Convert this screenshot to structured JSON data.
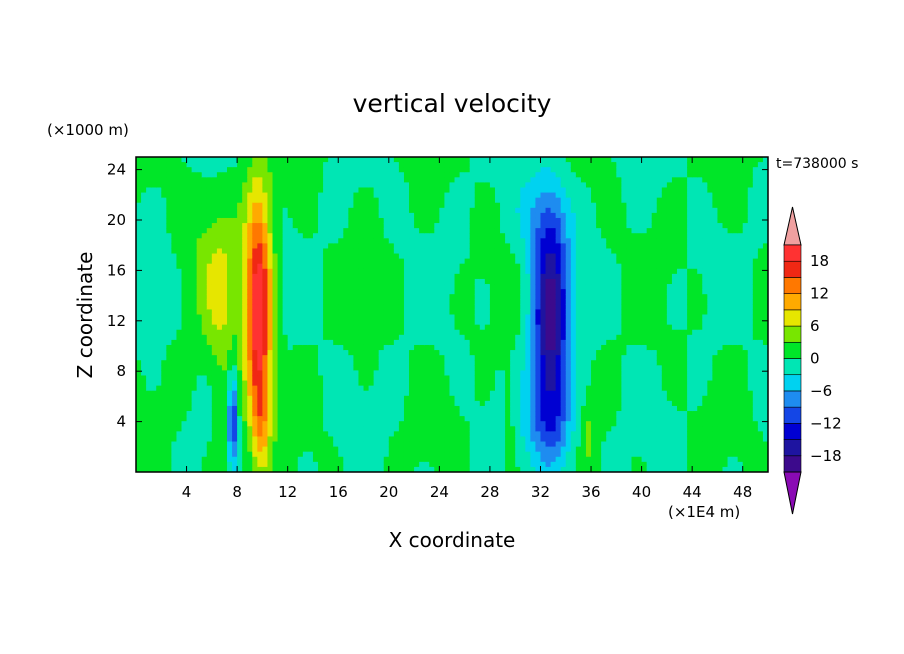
{
  "chart_data": {
    "type": "heatmap",
    "title": "vertical velocity",
    "xlabel": "X coordinate",
    "ylabel": "Z coordinate",
    "x_unit": "(×1E4 m)",
    "y_unit": "(×1000 m)",
    "time_label": "t=738000 s",
    "xlim": [
      0,
      50
    ],
    "ylim": [
      0,
      25
    ],
    "x_ticks": [
      4,
      8,
      12,
      16,
      20,
      24,
      28,
      32,
      36,
      40,
      44,
      48
    ],
    "y_ticks": [
      4,
      8,
      12,
      16,
      20,
      24
    ],
    "x_tick_labels": [
      "4",
      "8",
      "12",
      "16",
      "20",
      "24",
      "28",
      "32",
      "36",
      "40",
      "44",
      "48"
    ],
    "y_tick_labels": [
      "4",
      "8",
      "12",
      "16",
      "20",
      "24"
    ],
    "colorbar": {
      "min": -21,
      "max": 21,
      "step": 3,
      "levels": [
        -21,
        -18,
        -15,
        -12,
        -9,
        -6,
        -3,
        0,
        3,
        6,
        9,
        12,
        15,
        18,
        21
      ],
      "labels": [
        -18,
        -12,
        -6,
        0,
        6,
        12,
        18
      ],
      "label_text": [
        "−18",
        "−12",
        "−6",
        "0",
        "6",
        "12",
        "18"
      ],
      "extend": "both",
      "colors": [
        "#8a0ab4",
        "#3c0a8c",
        "#1e14a0",
        "#0000d2",
        "#1446e6",
        "#1e8cf0",
        "#00d2f0",
        "#00e6b4",
        "#00e628",
        "#78e600",
        "#e6e600",
        "#ffaa00",
        "#ff7800",
        "#f02814",
        "#ff3232",
        "#f0a0a0"
      ]
    },
    "features": [
      {
        "type": "updraft",
        "x_center": 9.7,
        "z_top": 24,
        "peak": 21
      },
      {
        "type": "downdraft",
        "x_center": 32.8,
        "z_top": 22,
        "peak": -19
      },
      {
        "type": "downdraft",
        "x_center": 7.7,
        "z_top": 7.5,
        "peak": -12
      }
    ]
  }
}
